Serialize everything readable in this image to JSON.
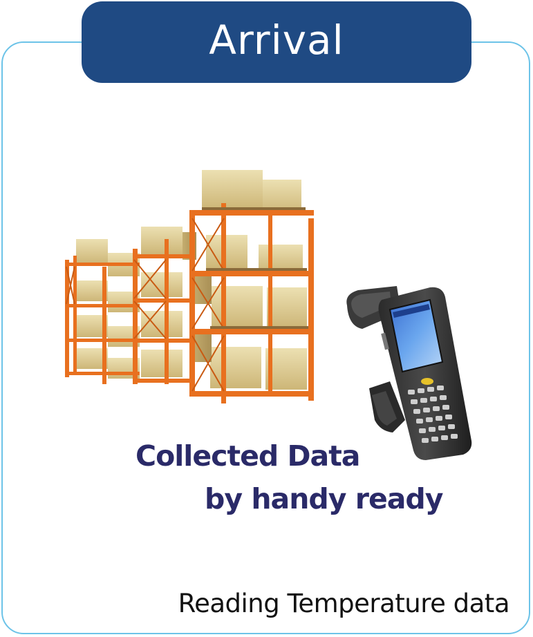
{
  "header": {
    "title": "Arrival"
  },
  "illustrations": {
    "warehouse": {
      "icon": "warehouse-rack-icon"
    },
    "scanner": {
      "icon": "handheld-scanner-icon"
    }
  },
  "caption": {
    "line1": "Collected Data",
    "line2": "by handy ready"
  },
  "footer": {
    "text": "Reading Temperature data"
  },
  "colors": {
    "header_bg": "#1f4a83",
    "card_border": "#6cc3e8",
    "caption": "#2a2a68",
    "rack_frame": "#e8701f",
    "box": "#d9c48a"
  }
}
